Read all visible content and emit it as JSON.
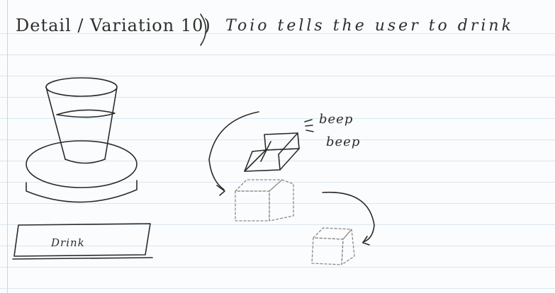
{
  "title": {
    "heading": "Detail / Variation 10)",
    "description": "Toio tells the user to drink"
  },
  "sound": {
    "line1": "beep",
    "line2": "beep"
  },
  "button": {
    "label": "Drink"
  },
  "colors": {
    "ink": "#2b2b2b",
    "paper": "#fbfcfd",
    "rule_line": "#d9e6f0",
    "margin_line": "#f2c6c6"
  }
}
